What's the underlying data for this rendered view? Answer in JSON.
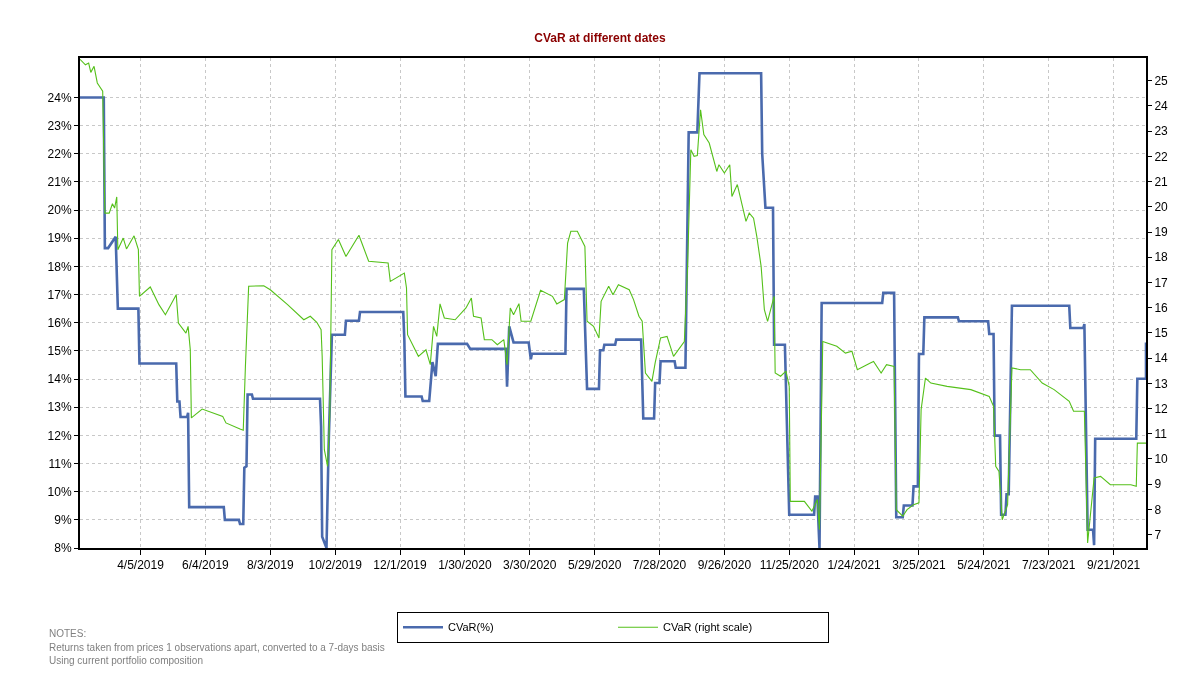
{
  "chart_data": {
    "type": "line",
    "title": "CVaR at different dates",
    "xlim": [
      "2019-02-08",
      "2021-10-21"
    ],
    "xticks": [
      {
        "value": "2019-04-05",
        "label": "4/5/2019"
      },
      {
        "value": "2019-06-04",
        "label": "6/4/2019"
      },
      {
        "value": "2019-08-03",
        "label": "8/3/2019"
      },
      {
        "value": "2019-10-02",
        "label": "10/2/2019"
      },
      {
        "value": "2019-12-01",
        "label": "12/1/2019"
      },
      {
        "value": "2020-01-30",
        "label": "1/30/2020"
      },
      {
        "value": "2020-03-30",
        "label": "3/30/2020"
      },
      {
        "value": "2020-05-29",
        "label": "5/29/2020"
      },
      {
        "value": "2020-07-28",
        "label": "7/28/2020"
      },
      {
        "value": "2020-09-26",
        "label": "9/26/2020"
      },
      {
        "value": "2020-11-25",
        "label": "11/25/2020"
      },
      {
        "value": "2021-01-24",
        "label": "1/24/2021"
      },
      {
        "value": "2021-03-25",
        "label": "3/25/2021"
      },
      {
        "value": "2021-05-24",
        "label": "5/24/2021"
      },
      {
        "value": "2021-07-23",
        "label": "7/23/2021"
      },
      {
        "value": "2021-09-21",
        "label": "9/21/2021"
      }
    ],
    "ylim": [
      8,
      25.4
    ],
    "yticks": [
      {
        "value": 8,
        "label": "8%"
      },
      {
        "value": 9,
        "label": "9%"
      },
      {
        "value": 10,
        "label": "10%"
      },
      {
        "value": 11,
        "label": "11%"
      },
      {
        "value": 12,
        "label": "12%"
      },
      {
        "value": 13,
        "label": "13%"
      },
      {
        "value": 14,
        "label": "14%"
      },
      {
        "value": 15,
        "label": "15%"
      },
      {
        "value": 16,
        "label": "16%"
      },
      {
        "value": 17,
        "label": "17%"
      },
      {
        "value": 18,
        "label": "18%"
      },
      {
        "value": 19,
        "label": "19%"
      },
      {
        "value": 20,
        "label": "20%"
      },
      {
        "value": 21,
        "label": "21%"
      },
      {
        "value": 22,
        "label": "22%"
      },
      {
        "value": 23,
        "label": "23%"
      },
      {
        "value": 24,
        "label": "24%"
      }
    ],
    "y2lim": [
      6.47,
      25.9
    ],
    "y2ticks": [
      7,
      8,
      9,
      10,
      11,
      12,
      13,
      14,
      15,
      16,
      17,
      18,
      19,
      20,
      21,
      22,
      23,
      24,
      25
    ],
    "grid": true,
    "legend": "bottom",
    "annotations": [
      "NOTES:",
      "Returns taken from prices 1 observations apart, converted to a 7-days basis",
      "Using current portfolio composition"
    ],
    "series": [
      {
        "name": "CVaR(%)",
        "color": "#4a6aad",
        "x": [
          "2019-02-08",
          "2019-03-02",
          "2019-03-03",
          "2019-03-06",
          "2019-03-13",
          "2019-03-15",
          "2019-04-03",
          "2019-04-04",
          "2019-05-08",
          "2019-05-09",
          "2019-05-11",
          "2019-05-12",
          "2019-05-18",
          "2019-05-19",
          "2019-05-20",
          "2019-06-21",
          "2019-06-22",
          "2019-07-05",
          "2019-07-06",
          "2019-07-09",
          "2019-07-10",
          "2019-07-12",
          "2019-07-13",
          "2019-07-17",
          "2019-07-18",
          "2019-09-18",
          "2019-09-19",
          "2019-09-20",
          "2019-09-24",
          "2019-09-26",
          "2019-09-29",
          "2019-10-11",
          "2019-10-12",
          "2019-10-24",
          "2019-10-25",
          "2019-12-04",
          "2019-12-05",
          "2019-12-06",
          "2019-12-21",
          "2019-12-22",
          "2019-12-28",
          "2019-12-31",
          "2020-01-03",
          "2020-01-05",
          "2020-02-01",
          "2020-02-04",
          "2020-03-08",
          "2020-03-09",
          "2020-03-11",
          "2020-03-15",
          "2020-03-29",
          "2020-03-31",
          "2020-04-01",
          "2020-05-02",
          "2020-05-03",
          "2020-05-19",
          "2020-05-22",
          "2020-06-02",
          "2020-06-03",
          "2020-06-06",
          "2020-06-07",
          "2020-06-17",
          "2020-06-18",
          "2020-07-11",
          "2020-07-13",
          "2020-07-23",
          "2020-07-24",
          "2020-07-28",
          "2020-07-29",
          "2020-08-11",
          "2020-08-12",
          "2020-08-21",
          "2020-08-24",
          "2020-09-01",
          "2020-09-03",
          "2020-10-30",
          "2020-10-31",
          "2020-11-03",
          "2020-11-10",
          "2020-11-11",
          "2020-11-21",
          "2020-11-25",
          "2020-12-18",
          "2020-12-19",
          "2020-12-21",
          "2020-12-23",
          "2020-12-25",
          "2021-02-19",
          "2021-02-20",
          "2021-03-02",
          "2021-03-04",
          "2021-03-10",
          "2021-03-11",
          "2021-03-19",
          "2021-03-20",
          "2021-03-24",
          "2021-03-25",
          "2021-03-29",
          "2021-03-30",
          "2021-04-30",
          "2021-05-01",
          "2021-05-28",
          "2021-05-29",
          "2021-06-02",
          "2021-06-03",
          "2021-06-08",
          "2021-06-09",
          "2021-06-13",
          "2021-06-14",
          "2021-06-16",
          "2021-06-19",
          "2021-08-11",
          "2021-08-12",
          "2021-08-24",
          "2021-08-25",
          "2021-08-28",
          "2021-09-02",
          "2021-09-03",
          "2021-09-04",
          "2021-10-12",
          "2021-10-13",
          "2021-10-21",
          "2021-10-21"
        ],
        "values": [
          24.0,
          24.0,
          18.65,
          18.65,
          19.05,
          16.5,
          16.5,
          14.55,
          14.55,
          13.2,
          13.2,
          12.65,
          12.65,
          12.8,
          9.45,
          9.45,
          9.0,
          9.0,
          8.85,
          8.85,
          10.85,
          10.9,
          13.45,
          13.45,
          13.3,
          13.3,
          12.3,
          8.4,
          8.0,
          11.7,
          15.57,
          15.57,
          16.07,
          16.07,
          16.38,
          16.38,
          15.4,
          13.38,
          13.38,
          13.22,
          13.22,
          14.6,
          14.1,
          15.25,
          15.25,
          15.07,
          15.07,
          13.73,
          15.87,
          15.3,
          15.3,
          14.7,
          14.9,
          14.9,
          17.2,
          17.2,
          13.65,
          13.65,
          15.02,
          15.02,
          15.22,
          15.22,
          15.4,
          15.4,
          12.6,
          12.6,
          13.86,
          13.86,
          14.63,
          14.63,
          14.4,
          14.4,
          22.76,
          22.76,
          24.86,
          24.86,
          22.0,
          20.08,
          20.08,
          15.22,
          15.22,
          9.18,
          9.18,
          9.83,
          9.83,
          8.0,
          16.7,
          16.7,
          17.06,
          17.06,
          9.09,
          9.09,
          9.51,
          9.51,
          10.19,
          10.19,
          14.89,
          14.89,
          16.19,
          16.19,
          16.05,
          16.05,
          15.6,
          15.6,
          11.99,
          11.99,
          9.18,
          9.18,
          9.91,
          9.91,
          16.6,
          16.6,
          15.81,
          15.81,
          15.95,
          8.65,
          8.65,
          8.1,
          11.88,
          11.88,
          14.01,
          14.01,
          15.3
        ]
      },
      {
        "name": "CVaR (right scale)",
        "color": "#55c01a",
        "axis": "y2",
        "x": [
          "2019-02-08",
          "2019-02-13",
          "2019-02-16",
          "2019-02-18",
          "2019-02-21",
          "2019-02-24",
          "2019-03-01",
          "2019-03-03",
          "2019-03-07",
          "2019-03-10",
          "2019-03-12",
          "2019-03-14",
          "2019-03-15",
          "2019-03-20",
          "2019-03-23",
          "2019-03-30",
          "2019-04-03",
          "2019-04-04",
          "2019-04-14",
          "2019-04-22",
          "2019-04-28",
          "2019-05-08",
          "2019-05-10",
          "2019-05-17",
          "2019-05-19",
          "2019-05-21",
          "2019-05-22",
          "2019-06-01",
          "2019-06-20",
          "2019-06-23",
          "2019-07-06",
          "2019-07-09",
          "2019-07-11",
          "2019-07-14",
          "2019-07-28",
          "2019-08-03",
          "2019-08-19",
          "2019-09-03",
          "2019-09-09",
          "2019-09-15",
          "2019-09-19",
          "2019-09-20",
          "2019-09-22",
          "2019-09-25",
          "2019-09-27",
          "2019-09-29",
          "2019-10-05",
          "2019-10-12",
          "2019-10-24",
          "2019-11-02",
          "2019-11-20",
          "2019-11-22",
          "2019-12-05",
          "2019-12-07",
          "2019-12-08",
          "2019-12-18",
          "2019-12-25",
          "2019-12-29",
          "2020-01-01",
          "2020-01-04",
          "2020-01-07",
          "2020-01-11",
          "2020-01-21",
          "2020-01-31",
          "2020-02-05",
          "2020-02-07",
          "2020-02-14",
          "2020-02-17",
          "2020-02-24",
          "2020-02-29",
          "2020-03-06",
          "2020-03-09",
          "2020-03-12",
          "2020-03-15",
          "2020-03-20",
          "2020-03-22",
          "2020-03-31",
          "2020-04-09",
          "2020-04-20",
          "2020-04-24",
          "2020-05-01",
          "2020-05-04",
          "2020-05-07",
          "2020-05-13",
          "2020-05-20",
          "2020-05-22",
          "2020-05-28",
          "2020-06-02",
          "2020-06-04",
          "2020-06-11",
          "2020-06-15",
          "2020-06-20",
          "2020-06-30",
          "2020-07-04",
          "2020-07-09",
          "2020-07-12",
          "2020-07-15",
          "2020-07-21",
          "2020-07-24",
          "2020-07-29",
          "2020-08-04",
          "2020-08-10",
          "2020-08-20",
          "2020-08-23",
          "2020-08-26",
          "2020-08-29",
          "2020-09-01",
          "2020-09-04",
          "2020-09-07",
          "2020-09-12",
          "2020-09-19",
          "2020-09-21",
          "2020-09-26",
          "2020-10-01",
          "2020-10-03",
          "2020-10-08",
          "2020-10-16",
          "2020-10-19",
          "2020-10-23",
          "2020-10-26",
          "2020-10-30",
          "2020-11-02",
          "2020-11-05",
          "2020-11-11",
          "2020-11-12",
          "2020-11-17",
          "2020-11-22",
          "2020-11-25",
          "2020-11-26",
          "2020-12-09",
          "2020-12-16",
          "2020-12-21",
          "2020-12-23",
          "2020-12-26",
          "2021-01-08",
          "2021-01-16",
          "2021-01-22",
          "2021-01-27",
          "2021-02-08",
          "2021-02-11",
          "2021-02-18",
          "2021-02-23",
          "2021-03-02",
          "2021-03-04",
          "2021-03-10",
          "2021-03-14",
          "2021-03-20",
          "2021-03-25",
          "2021-03-27",
          "2021-03-31",
          "2021-04-05",
          "2021-04-20",
          "2021-05-12",
          "2021-05-29",
          "2021-06-02",
          "2021-06-04",
          "2021-06-07",
          "2021-06-10",
          "2021-06-15",
          "2021-06-19",
          "2021-06-27",
          "2021-07-06",
          "2021-07-17",
          "2021-07-28",
          "2021-08-11",
          "2021-08-15",
          "2021-08-25",
          "2021-08-28",
          "2021-09-03",
          "2021-09-09",
          "2021-09-18",
          "2021-10-07",
          "2021-10-12",
          "2021-10-13",
          "2021-10-21"
        ],
        "values": [
          25.85,
          25.63,
          25.7,
          25.33,
          25.57,
          24.91,
          24.58,
          19.75,
          19.75,
          20.12,
          19.95,
          20.39,
          18.3,
          18.76,
          18.33,
          18.85,
          18.3,
          16.45,
          16.82,
          16.12,
          15.72,
          16.51,
          15.39,
          14.99,
          15.26,
          14.33,
          11.63,
          11.98,
          11.69,
          11.43,
          11.19,
          11.14,
          13.67,
          16.85,
          16.87,
          16.71,
          16.12,
          15.52,
          15.66,
          15.42,
          15.13,
          14.07,
          10.37,
          9.71,
          11.69,
          18.3,
          18.7,
          18.03,
          18.87,
          17.84,
          17.77,
          17.04,
          17.37,
          16.78,
          14.93,
          14.07,
          14.33,
          13.74,
          15.26,
          14.86,
          16.15,
          15.59,
          15.52,
          15.99,
          16.38,
          15.66,
          15.59,
          14.73,
          14.73,
          14.53,
          14.73,
          13.74,
          15.99,
          15.72,
          16.16,
          15.46,
          15.46,
          16.69,
          16.45,
          16.15,
          16.32,
          18.56,
          19.03,
          19.03,
          18.43,
          15.46,
          15.26,
          14.8,
          16.25,
          16.85,
          16.51,
          16.91,
          16.71,
          16.32,
          15.66,
          15.46,
          13.41,
          13.08,
          13.81,
          14.8,
          14.86,
          14.07,
          14.66,
          17.64,
          22.26,
          22.0,
          22.03,
          23.85,
          22.86,
          22.53,
          21.4,
          21.67,
          21.34,
          21.67,
          20.41,
          20.88,
          19.42,
          19.75,
          19.55,
          18.83,
          17.64,
          15.92,
          15.46,
          16.45,
          13.41,
          13.28,
          13.48,
          12.88,
          8.32,
          8.32,
          7.93,
          8.39,
          7.2,
          14.66,
          14.47,
          14.2,
          14.27,
          13.54,
          13.81,
          13.87,
          13.41,
          13.74,
          13.67,
          7.99,
          7.73,
          7.99,
          8.19,
          8.26,
          11.96,
          13.21,
          13.01,
          12.88,
          12.75,
          12.48,
          12.09,
          9.71,
          9.51,
          7.59,
          8.19,
          13.61,
          13.54,
          13.54,
          13.01,
          12.75,
          12.29,
          11.89,
          11.89,
          6.67,
          9.25,
          9.31,
          8.98,
          8.98,
          8.92,
          10.63,
          10.63
        ]
      }
    ]
  }
}
